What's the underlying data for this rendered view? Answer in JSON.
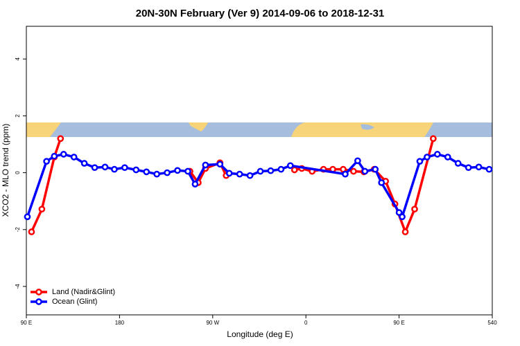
{
  "chart_data": {
    "type": "line",
    "title": "20N-30N February (Ver 9)   2014-09-06 to 2018-12-31",
    "xlabel": "Longitude (deg E)",
    "ylabel": "XCO2 - MLO trend (ppm)",
    "xlim": [
      90,
      540
    ],
    "ylim": [
      -5.0,
      5.15
    ],
    "xticks": [
      {
        "value": 90,
        "label": "90 E"
      },
      180,
      {
        "value": 270,
        "label": "90 W"
      },
      {
        "value": 360,
        "label": "0"
      },
      {
        "value": 450,
        "label": "90 E"
      },
      540
    ],
    "yticks": [
      -4,
      -2,
      0,
      2,
      4
    ],
    "legend": "bottom-left",
    "series": [
      {
        "name": "Land (Nadir&Glint)",
        "color": "#ff0000",
        "x": [
          95,
          105,
          117,
          123,
          null,
          248,
          256,
          263,
          277,
          283,
          null,
          349,
          356,
          366,
          377,
          386,
          396,
          406,
          416,
          426,
          437,
          446,
          456,
          465,
          483
        ],
        "values": [
          -2.08,
          -1.28,
          0.55,
          1.2,
          null,
          0.05,
          -0.35,
          0.15,
          0.35,
          -0.1,
          null,
          0.1,
          0.15,
          0.05,
          0.12,
          0.12,
          0.12,
          0.05,
          0.03,
          0.12,
          -0.3,
          -1.1,
          -2.08,
          -1.28,
          1.2
        ]
      },
      {
        "name": "Ocean (Glint)",
        "color": "#0000ff",
        "x": [
          91,
          109.5,
          117,
          126,
          136,
          146,
          156,
          166,
          175,
          185,
          196,
          206,
          216,
          226,
          236,
          246,
          253,
          263,
          277,
          286,
          296,
          306,
          316,
          326,
          336,
          345,
          398,
          410,
          417,
          427,
          433,
          450,
          453,
          470,
          477,
          487,
          497,
          507,
          517,
          527,
          537
        ],
        "values": [
          -1.55,
          0.4,
          0.58,
          0.65,
          0.55,
          0.33,
          0.18,
          0.2,
          0.12,
          0.18,
          0.1,
          0.03,
          -0.05,
          0.0,
          0.08,
          0.05,
          -0.4,
          0.27,
          0.3,
          -0.02,
          -0.05,
          -0.1,
          0.05,
          0.07,
          0.12,
          0.25,
          -0.05,
          0.42,
          0.05,
          0.12,
          -0.35,
          -1.4,
          -1.55,
          0.4,
          0.55,
          0.65,
          0.55,
          0.33,
          0.18,
          0.2,
          0.12
        ]
      }
    ]
  }
}
